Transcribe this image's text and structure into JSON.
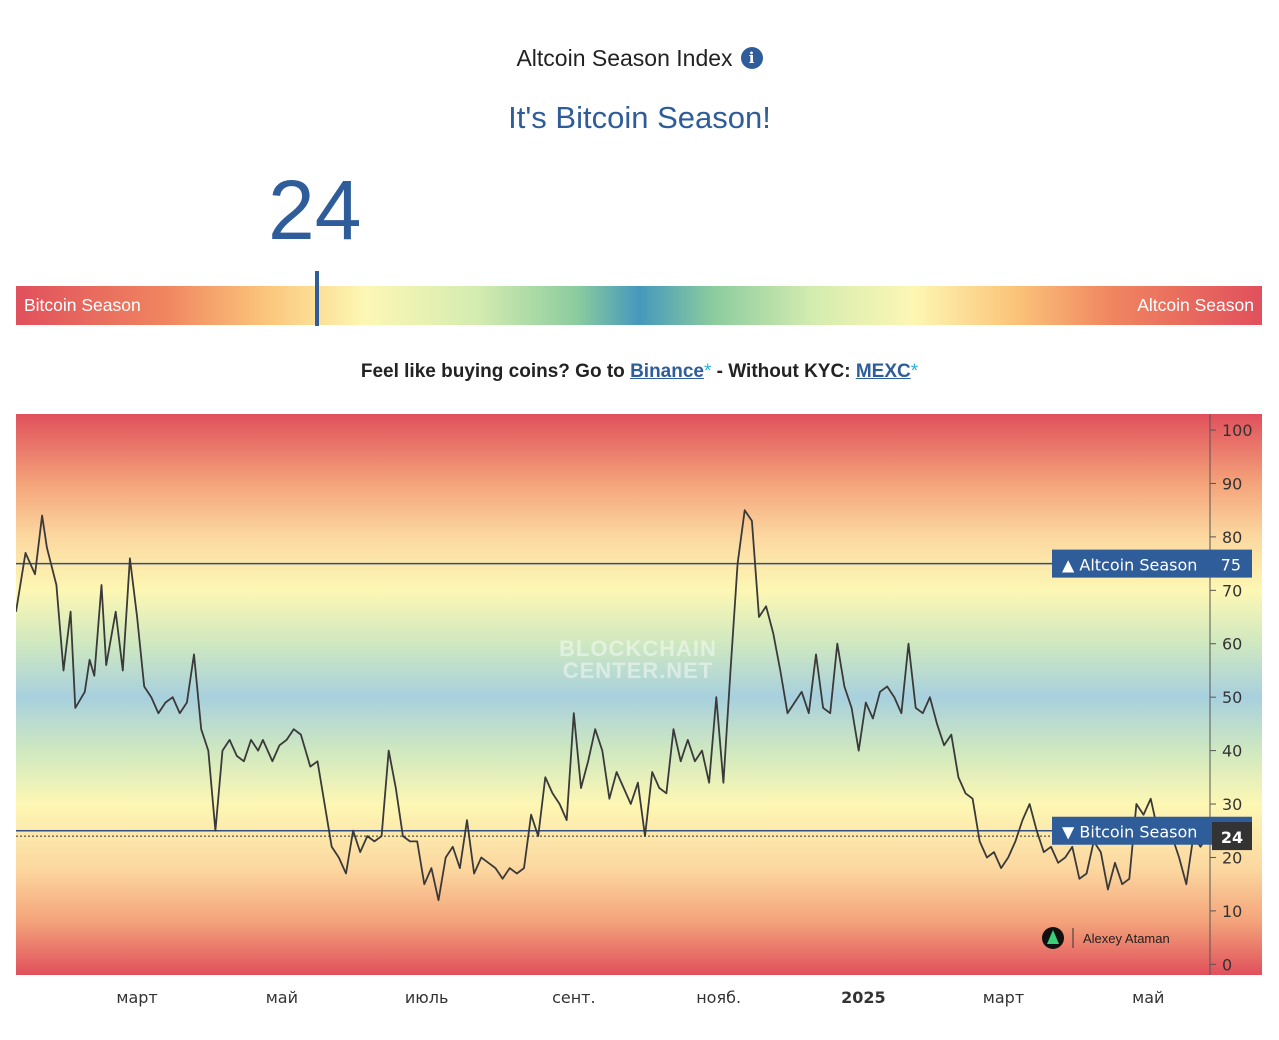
{
  "header": {
    "title": "Altcoin Season Index",
    "info_icon": "info-icon",
    "status": "It's Bitcoin Season!",
    "current_value": "24"
  },
  "gauge": {
    "left_label": "Bitcoin Season",
    "right_label": "Altcoin Season",
    "value": 24
  },
  "promo": {
    "prefix": "Feel like buying coins? Go to",
    "binance": "Binance",
    "asterisk": "*",
    "middle": "- Without KYC:",
    "mexc": "MEXC"
  },
  "colors": {
    "accent": "#2f5d9a",
    "line": "#3a3a3a",
    "red": "#e0505c",
    "blue": "#4598bc"
  },
  "chart_data": {
    "type": "line",
    "ylim": [
      -2,
      103
    ],
    "yticks": [
      0,
      10,
      20,
      30,
      40,
      50,
      60,
      70,
      80,
      90,
      100
    ],
    "ytick_labels": [
      "0",
      "10",
      "20",
      "30",
      "40",
      "50",
      "60",
      "70",
      "80",
      "90",
      "100"
    ],
    "grid": false,
    "x_labels": [
      {
        "label": "март",
        "x": "2024-03-01"
      },
      {
        "label": "май",
        "x": "2024-05-01"
      },
      {
        "label": "июль",
        "x": "2024-07-01"
      },
      {
        "label": "сент.",
        "x": "2024-09-01"
      },
      {
        "label": "нояб.",
        "x": "2024-11-01"
      },
      {
        "label": "2025",
        "x": "2025-01-01"
      },
      {
        "label": "март",
        "x": "2025-03-01"
      },
      {
        "label": "май",
        "x": "2025-05-01"
      }
    ],
    "xlim": [
      "2024-01-10",
      "2025-05-27"
    ],
    "reference_lines": [
      {
        "label": "▲ Altcoin Season",
        "value": 75
      },
      {
        "label": "▼ Bitcoin Season",
        "value": 25
      }
    ],
    "current": {
      "label": "24",
      "value": 24
    },
    "watermark": "BLOCKCHAIN CENTER.NET",
    "author": "Alexey Ataman",
    "series": [
      {
        "x": [
          "2024-01-10",
          "2024-01-14",
          "2024-01-18",
          "2024-01-21",
          "2024-01-23",
          "2024-01-27",
          "2024-01-30",
          "2024-02-02",
          "2024-02-04",
          "2024-02-08",
          "2024-02-10",
          "2024-02-12",
          "2024-02-15",
          "2024-02-17",
          "2024-02-21",
          "2024-02-24",
          "2024-02-27",
          "2024-03-01",
          "2024-03-04",
          "2024-03-07",
          "2024-03-10",
          "2024-03-13",
          "2024-03-16",
          "2024-03-19",
          "2024-03-22",
          "2024-03-25",
          "2024-03-28",
          "2024-03-31",
          "2024-04-03",
          "2024-04-06",
          "2024-04-09",
          "2024-04-12",
          "2024-04-15",
          "2024-04-18",
          "2024-04-21",
          "2024-04-23",
          "2024-04-27",
          "2024-04-30",
          "2024-05-03",
          "2024-05-06",
          "2024-05-09",
          "2024-05-13",
          "2024-05-16",
          "2024-05-19",
          "2024-05-22",
          "2024-05-25",
          "2024-05-28",
          "2024-05-31",
          "2024-06-03",
          "2024-06-06",
          "2024-06-09",
          "2024-06-12",
          "2024-06-15",
          "2024-06-18",
          "2024-06-21",
          "2024-06-24",
          "2024-06-27",
          "2024-06-30",
          "2024-07-03",
          "2024-07-06",
          "2024-07-09",
          "2024-07-12",
          "2024-07-15",
          "2024-07-18",
          "2024-07-21",
          "2024-07-24",
          "2024-07-27",
          "2024-07-30",
          "2024-08-02",
          "2024-08-05",
          "2024-08-08",
          "2024-08-11",
          "2024-08-14",
          "2024-08-17",
          "2024-08-20",
          "2024-08-23",
          "2024-08-26",
          "2024-08-29",
          "2024-09-01",
          "2024-09-04",
          "2024-09-07",
          "2024-09-10",
          "2024-09-13",
          "2024-09-16",
          "2024-09-19",
          "2024-09-22",
          "2024-09-25",
          "2024-09-28",
          "2024-10-01",
          "2024-10-04",
          "2024-10-07",
          "2024-10-10",
          "2024-10-13",
          "2024-10-16",
          "2024-10-19",
          "2024-10-22",
          "2024-10-25",
          "2024-10-28",
          "2024-10-31",
          "2024-11-03",
          "2024-11-06",
          "2024-11-09",
          "2024-11-12",
          "2024-11-15",
          "2024-11-18",
          "2024-11-21",
          "2024-11-24",
          "2024-11-27",
          "2024-11-30",
          "2024-12-03",
          "2024-12-06",
          "2024-12-09",
          "2024-12-12",
          "2024-12-15",
          "2024-12-18",
          "2024-12-21",
          "2024-12-24",
          "2024-12-27",
          "2024-12-30",
          "2025-01-02",
          "2025-01-05",
          "2025-01-08",
          "2025-01-11",
          "2025-01-14",
          "2025-01-17",
          "2025-01-20",
          "2025-01-23",
          "2025-01-26",
          "2025-01-29",
          "2025-02-01",
          "2025-02-04",
          "2025-02-07",
          "2025-02-10",
          "2025-02-13",
          "2025-02-16",
          "2025-02-19",
          "2025-02-22",
          "2025-02-25",
          "2025-02-28",
          "2025-03-03",
          "2025-03-06",
          "2025-03-09",
          "2025-03-12",
          "2025-03-15",
          "2025-03-18",
          "2025-03-21",
          "2025-03-24",
          "2025-03-27",
          "2025-03-30",
          "2025-04-02",
          "2025-04-05",
          "2025-04-08",
          "2025-04-11",
          "2025-04-14",
          "2025-04-17",
          "2025-04-20",
          "2025-04-23",
          "2025-04-26",
          "2025-04-29",
          "2025-05-02",
          "2025-05-05",
          "2025-05-08",
          "2025-05-11",
          "2025-05-14",
          "2025-05-17",
          "2025-05-20",
          "2025-05-23",
          "2025-05-26"
        ],
        "y": [
          66,
          77,
          73,
          84,
          78,
          71,
          55,
          66,
          48,
          51,
          57,
          54,
          71,
          56,
          66,
          55,
          76,
          65,
          52,
          50,
          47,
          49,
          50,
          47,
          49,
          58,
          44,
          40,
          25,
          40,
          42,
          39,
          38,
          42,
          40,
          42,
          38,
          41,
          42,
          44,
          43,
          37,
          38,
          30,
          22,
          20,
          17,
          25,
          21,
          24,
          23,
          24,
          40,
          33,
          24,
          23,
          23,
          15,
          18,
          12,
          20,
          22,
          18,
          27,
          17,
          20,
          19,
          18,
          16,
          18,
          17,
          18,
          28,
          24,
          35,
          32,
          30,
          27,
          47,
          33,
          38,
          44,
          40,
          31,
          36,
          33,
          30,
          34,
          24,
          36,
          33,
          32,
          44,
          38,
          42,
          38,
          40,
          34,
          50,
          34,
          55,
          75,
          85,
          83,
          65,
          67,
          62,
          55,
          47,
          49,
          51,
          47,
          58,
          48,
          47,
          60,
          52,
          48,
          40,
          49,
          46,
          51,
          52,
          50,
          47,
          60,
          48,
          47,
          50,
          45,
          41,
          43,
          35,
          32,
          31,
          23,
          20,
          21,
          18,
          20,
          23,
          27,
          30,
          25,
          21,
          22,
          19,
          20,
          22,
          16,
          17,
          23,
          21,
          14,
          19,
          15,
          16,
          30,
          28,
          31,
          25,
          24,
          24,
          20,
          15,
          24,
          22,
          24
        ]
      }
    ]
  }
}
